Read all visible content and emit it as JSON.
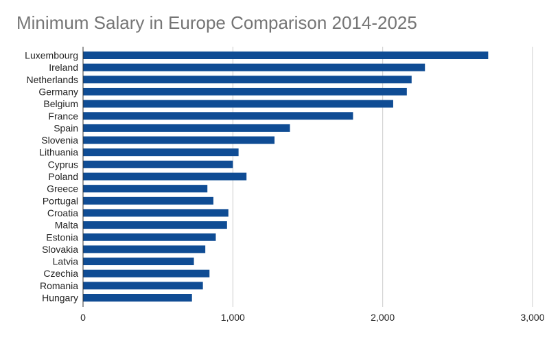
{
  "chart_data": {
    "type": "bar",
    "orientation": "horizontal",
    "title": "Minimum Salary in Europe Comparison 2014-2025",
    "xlabel": "",
    "ylabel": "",
    "categories": [
      "Luxembourg",
      "Ireland",
      "Netherlands",
      "Germany",
      "Belgium",
      "France",
      "Spain",
      "Slovenia",
      "Lithuania",
      "Cyprus",
      "Poland",
      "Greece",
      "Portugal",
      "Croatia",
      "Malta",
      "Estonia",
      "Slovakia",
      "Latvia",
      "Czechia",
      "Romania",
      "Hungary"
    ],
    "values": [
      2704,
      2282,
      2193,
      2161,
      2070,
      1802,
      1381,
      1278,
      1038,
      1000,
      1091,
      830,
      870,
      970,
      961,
      886,
      816,
      740,
      844,
      800,
      727
    ],
    "xlim": [
      0,
      3000
    ],
    "ticks": [
      0,
      1000,
      2000,
      3000
    ],
    "tick_labels": [
      "0",
      "1,000",
      "2,000",
      "3,000"
    ],
    "grid": true,
    "legend": "none",
    "bar_color": "#0f4c94",
    "grid_color": "#cccccc",
    "axis_color": "#333333"
  }
}
